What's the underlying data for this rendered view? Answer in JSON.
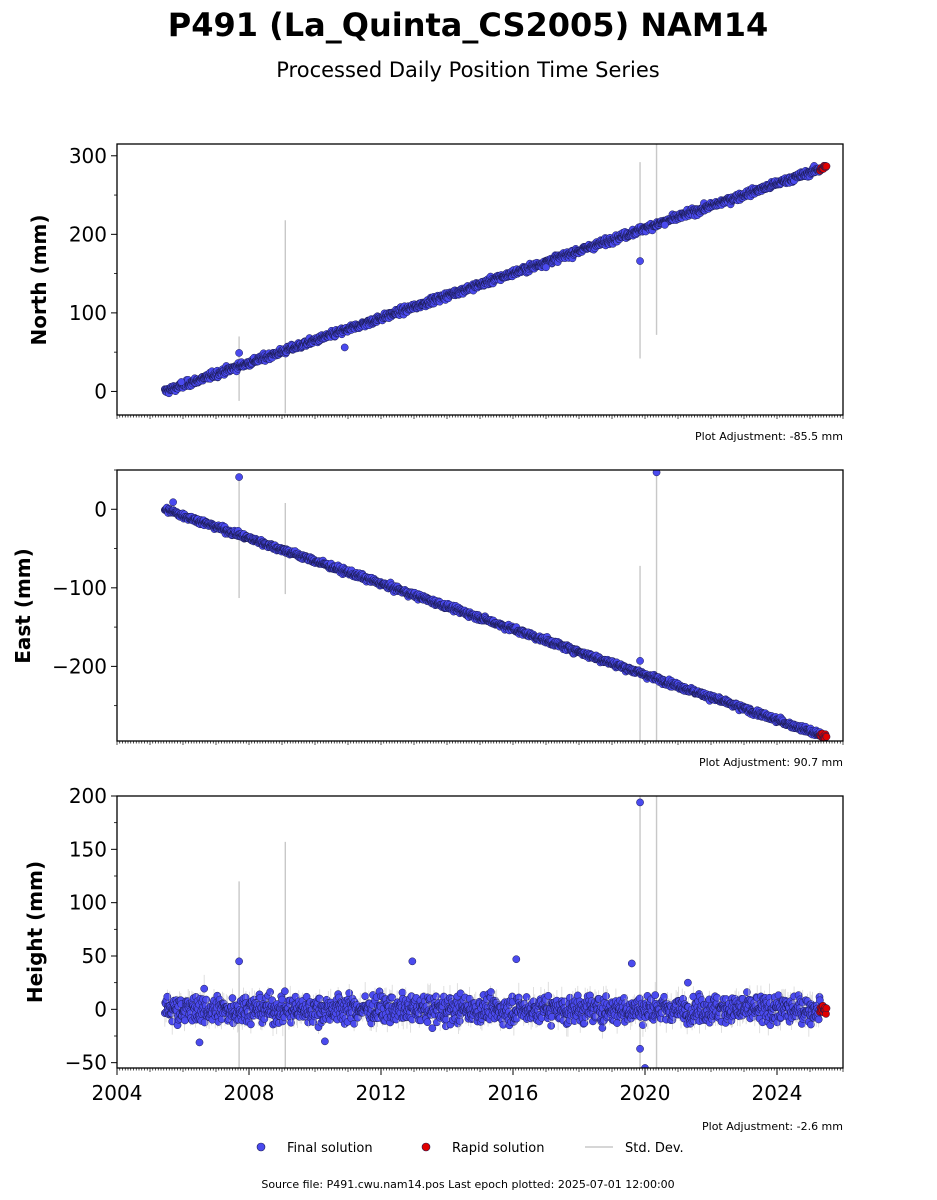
{
  "title": "P491 (La_Quinta_CS2005) NAM14",
  "subtitle": "Processed Daily Position Time Series",
  "footer": "Source file: P491.cwu.nam14.pos  Last epoch plotted: 2025-07-01 12:00:00",
  "legend": {
    "final_label": "Final solution",
    "rapid_label": "Rapid solution",
    "std_label": "Std. Dev."
  },
  "colors": {
    "final": "#4a4aee",
    "rapid": "#e00000",
    "std": "#c8c8c8",
    "edge": "#1a1a50"
  },
  "chart_data": [
    {
      "type": "scatter",
      "ylabel": "North (mm)",
      "adjustment": "Plot Adjustment: -85.5 mm",
      "xlim": [
        2004.0,
        2026.0
      ],
      "ylim": [
        -30,
        315
      ],
      "yticks": [
        0,
        100,
        200,
        300
      ],
      "ytick_labels": [
        "0",
        "100",
        "200",
        "300"
      ],
      "x_start": 2005.45,
      "x_end": 2025.5,
      "trend": [
        0,
        286
      ],
      "scatter": 3,
      "outliers": [
        [
          2005.95,
          12
        ],
        [
          2007.7,
          49
        ],
        [
          2010.9,
          56
        ],
        [
          2019.85,
          166
        ],
        [
          2017.0,
          158
        ],
        [
          2020.6,
          212
        ]
      ],
      "std_bars": [
        [
          2007.7,
          -12,
          70
        ],
        [
          2009.1,
          -28,
          218
        ],
        [
          2019.85,
          42,
          292
        ],
        [
          2020.35,
          72,
          315
        ]
      ],
      "rapid_range": [
        2025.3,
        2025.5
      ]
    },
    {
      "type": "scatter",
      "ylabel": "East (mm)",
      "adjustment": "Plot Adjustment: 90.7 mm",
      "xlim": [
        2004.0,
        2026.0
      ],
      "ylim": [
        -295,
        50
      ],
      "yticks": [
        0,
        -100,
        -200
      ],
      "ytick_labels": [
        "0",
        "−100",
        "−200"
      ],
      "x_start": 2005.45,
      "x_end": 2025.5,
      "trend": [
        0,
        -290
      ],
      "scatter": 2.5,
      "outliers": [
        [
          2005.7,
          9
        ],
        [
          2007.7,
          41
        ],
        [
          2019.85,
          -193
        ],
        [
          2020.35,
          47
        ]
      ],
      "std_bars": [
        [
          2007.7,
          -113,
          41
        ],
        [
          2009.1,
          -108,
          8
        ],
        [
          2019.85,
          -295,
          -72
        ],
        [
          2020.35,
          -295,
          50
        ]
      ],
      "rapid_range": [
        2025.3,
        2025.5
      ]
    },
    {
      "type": "scatter",
      "ylabel": "Height (mm)",
      "adjustment": "Plot Adjustment: -2.6 mm",
      "xlim": [
        2004.0,
        2026.0
      ],
      "ylim": [
        -55,
        200
      ],
      "yticks": [
        -50,
        0,
        50,
        100,
        150,
        200
      ],
      "ytick_labels": [
        "−50",
        "0",
        "50",
        "100",
        "150",
        "200"
      ],
      "x_start": 2005.45,
      "x_end": 2025.5,
      "trend": [
        0,
        0
      ],
      "scatter": 9,
      "outliers": [
        [
          2007.7,
          45
        ],
        [
          2012.95,
          45
        ],
        [
          2019.85,
          194
        ],
        [
          2019.85,
          -37
        ],
        [
          2020.0,
          -55
        ],
        [
          2016.1,
          47
        ],
        [
          2010.3,
          -30
        ],
        [
          2006.5,
          -31
        ],
        [
          2019.6,
          43
        ],
        [
          2021.3,
          25
        ]
      ],
      "std_bars": [
        [
          2007.7,
          -55,
          120
        ],
        [
          2009.1,
          -55,
          157
        ],
        [
          2019.85,
          -55,
          200
        ],
        [
          2020.35,
          -55,
          200
        ]
      ],
      "rapid_range": [
        2025.3,
        2025.5
      ],
      "xticks": [
        2004,
        2008,
        2012,
        2016,
        2020,
        2024
      ],
      "xtick_labels": [
        "2004",
        "2008",
        "2012",
        "2016",
        "2020",
        "2024"
      ]
    }
  ]
}
